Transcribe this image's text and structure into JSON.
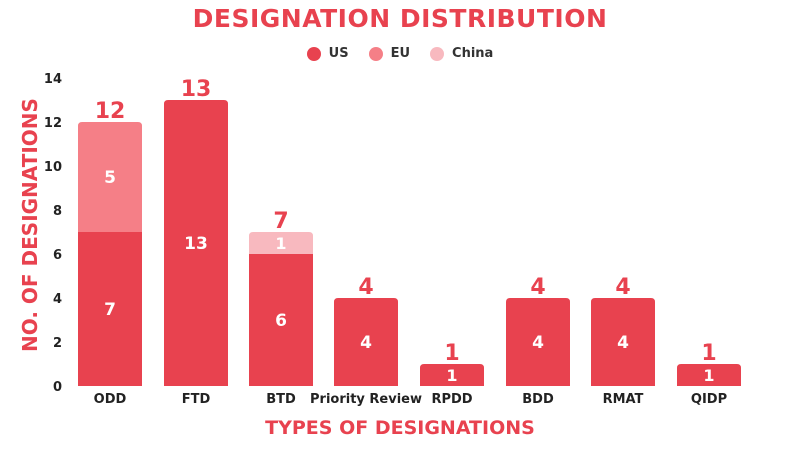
{
  "chart_data": {
    "type": "bar",
    "stacked": true,
    "title": "DESIGNATION DISTRIBUTION",
    "xlabel": "TYPES OF DESIGNATIONS",
    "ylabel": "NO. OF DESIGNATIONS",
    "categories": [
      "ODD",
      "FTD",
      "BTD",
      "Priority Review",
      "RPDD",
      "BDD",
      "RMAT",
      "QIDP"
    ],
    "series": [
      {
        "name": "US",
        "color": "#e8424f",
        "values": [
          7,
          13,
          6,
          4,
          1,
          4,
          4,
          1
        ]
      },
      {
        "name": "EU",
        "color": "#f57f87",
        "values": [
          5,
          0,
          0,
          0,
          0,
          0,
          0,
          0
        ]
      },
      {
        "name": "China",
        "color": "#f8b9bf",
        "values": [
          0,
          0,
          1,
          0,
          0,
          0,
          0,
          0
        ]
      }
    ],
    "totals": [
      12,
      13,
      7,
      4,
      1,
      4,
      4,
      1
    ],
    "ylim": [
      0,
      14
    ],
    "yticks": [
      0,
      2,
      4,
      6,
      8,
      10,
      12,
      14
    ],
    "grid": false,
    "legend_position": "top-center"
  }
}
